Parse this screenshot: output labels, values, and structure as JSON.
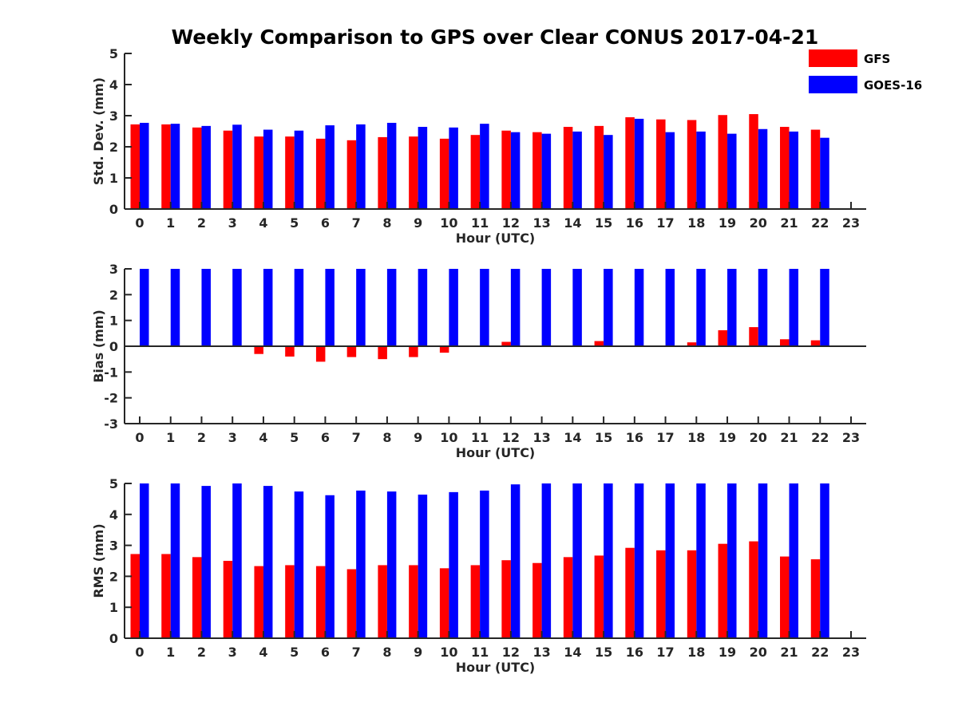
{
  "title": "Weekly Comparison to GPS over Clear CONUS 2017-04-21",
  "legend": [
    {
      "name": "GFS",
      "color": "#ff0000"
    },
    {
      "name": "GOES-16",
      "color": "#0000ff"
    }
  ],
  "chart_data": [
    {
      "type": "bar",
      "ylabel": "Std. Dev. (mm)",
      "xlabel": "Hour (UTC)",
      "ylim": [
        0,
        5
      ],
      "yticks": [
        0,
        1,
        2,
        3,
        4,
        5
      ],
      "categories": [
        "0",
        "1",
        "2",
        "3",
        "4",
        "5",
        "6",
        "7",
        "8",
        "9",
        "10",
        "11",
        "12",
        "13",
        "14",
        "15",
        "16",
        "17",
        "18",
        "19",
        "20",
        "21",
        "22",
        "23"
      ],
      "series": [
        {
          "name": "GFS",
          "color": "#ff0000",
          "values": [
            2.72,
            2.72,
            2.62,
            2.52,
            2.33,
            2.33,
            2.26,
            2.21,
            2.31,
            2.33,
            2.26,
            2.38,
            2.52,
            2.47,
            2.64,
            2.67,
            2.95,
            2.88,
            2.86,
            3.02,
            3.05,
            2.64,
            2.55,
            null
          ]
        },
        {
          "name": "GOES-16",
          "color": "#0000ff",
          "values": [
            2.77,
            2.74,
            2.67,
            2.71,
            2.55,
            2.52,
            2.69,
            2.72,
            2.77,
            2.64,
            2.62,
            2.74,
            2.47,
            2.42,
            2.49,
            2.38,
            2.9,
            2.47,
            2.49,
            2.42,
            2.57,
            2.49,
            2.29,
            null
          ]
        }
      ]
    },
    {
      "type": "bar",
      "ylabel": "Bias (mm)",
      "xlabel": "Hour (UTC)",
      "ylim": [
        -3,
        3
      ],
      "yticks": [
        -3,
        -2,
        -1,
        0,
        1,
        2,
        3
      ],
      "categories": [
        "0",
        "1",
        "2",
        "3",
        "4",
        "5",
        "6",
        "7",
        "8",
        "9",
        "10",
        "11",
        "12",
        "13",
        "14",
        "15",
        "16",
        "17",
        "18",
        "19",
        "20",
        "21",
        "22",
        "23"
      ],
      "series": [
        {
          "name": "GFS",
          "color": "#ff0000",
          "values": [
            0.0,
            0.0,
            0.03,
            0.03,
            -0.3,
            -0.4,
            -0.6,
            -0.42,
            -0.5,
            -0.42,
            -0.25,
            0.0,
            0.17,
            0.03,
            0.03,
            0.2,
            0.0,
            -0.03,
            0.15,
            0.62,
            0.74,
            0.27,
            0.23,
            null
          ]
        },
        {
          "name": "GOES-16",
          "color": "#0000ff",
          "values": [
            3,
            3,
            3,
            3,
            3,
            3,
            3,
            3,
            3,
            3,
            3,
            3,
            3,
            3,
            3,
            3,
            3,
            3,
            3,
            3,
            3,
            3,
            3,
            null
          ]
        }
      ]
    },
    {
      "type": "bar",
      "ylabel": "RMS (mm)",
      "xlabel": "Hour (UTC)",
      "ylim": [
        0,
        5
      ],
      "yticks": [
        0,
        1,
        2,
        3,
        4,
        5
      ],
      "categories": [
        "0",
        "1",
        "2",
        "3",
        "4",
        "5",
        "6",
        "7",
        "8",
        "9",
        "10",
        "11",
        "12",
        "13",
        "14",
        "15",
        "16",
        "17",
        "18",
        "19",
        "20",
        "21",
        "22",
        "23"
      ],
      "series": [
        {
          "name": "GFS",
          "color": "#ff0000",
          "values": [
            2.72,
            2.72,
            2.62,
            2.5,
            2.33,
            2.36,
            2.33,
            2.23,
            2.36,
            2.36,
            2.26,
            2.36,
            2.52,
            2.43,
            2.62,
            2.67,
            2.92,
            2.84,
            2.84,
            3.05,
            3.13,
            2.64,
            2.55,
            null
          ]
        },
        {
          "name": "GOES-16",
          "color": "#0000ff",
          "values": [
            5,
            5,
            4.92,
            5,
            4.92,
            4.74,
            4.62,
            4.77,
            4.74,
            4.64,
            4.72,
            4.77,
            4.97,
            5,
            5,
            5,
            5,
            5,
            5,
            5,
            5,
            5,
            5,
            null
          ]
        }
      ]
    }
  ]
}
